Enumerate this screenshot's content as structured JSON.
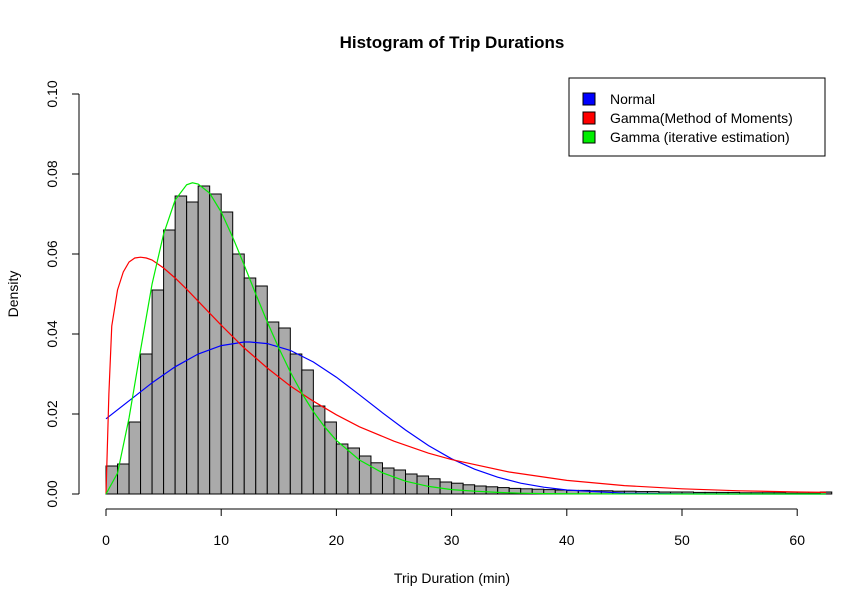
{
  "chart_data": {
    "type": "bar",
    "title": "Histogram of Trip Durations",
    "xlabel": "Trip Duration (min)",
    "ylabel": "Density",
    "xlim": [
      0,
      62.5
    ],
    "ylim": [
      0,
      0.1
    ],
    "x_ticks": [
      "0",
      "10",
      "20",
      "30",
      "40",
      "50",
      "60"
    ],
    "y_ticks": [
      "0.00",
      "0.02",
      "0.04",
      "0.06",
      "0.08",
      "0.10"
    ],
    "bin_width": 1,
    "bar_color": "#aaaaaa",
    "histogram_values": [
      0.007,
      0.0075,
      0.018,
      0.035,
      0.051,
      0.066,
      0.0745,
      0.073,
      0.077,
      0.075,
      0.0705,
      0.06,
      0.054,
      0.052,
      0.043,
      0.0415,
      0.035,
      0.031,
      0.022,
      0.018,
      0.0125,
      0.0115,
      0.0095,
      0.0078,
      0.0065,
      0.006,
      0.005,
      0.0045,
      0.0038,
      0.003,
      0.0027,
      0.0023,
      0.002,
      0.0018,
      0.0016,
      0.0014,
      0.0013,
      0.0012,
      0.0011,
      0.001,
      0.0009,
      0.0009,
      0.0008,
      0.0008,
      0.0007,
      0.0007,
      0.0006,
      0.0006,
      0.0005,
      0.0005,
      0.0005,
      0.0004,
      0.0004,
      0.0004,
      0.0004,
      0.0003,
      0.0003,
      0.0003,
      0.0003,
      0.0002,
      0.0002,
      0.0002,
      0.0005
    ],
    "series": [
      {
        "name": "Normal",
        "color": "#0000ff",
        "x": [
          0,
          2,
          4,
          6,
          8,
          10,
          12,
          12.5,
          14,
          16,
          18,
          20,
          22,
          24,
          26,
          28,
          30,
          32,
          34,
          36,
          38,
          40,
          45,
          50,
          55,
          60,
          62.5
        ],
        "y": [
          0.0188,
          0.0233,
          0.0278,
          0.0318,
          0.035,
          0.0371,
          0.038,
          0.038,
          0.0376,
          0.0359,
          0.033,
          0.0292,
          0.0248,
          0.0203,
          0.016,
          0.0121,
          0.0088,
          0.0062,
          0.0042,
          0.0027,
          0.0017,
          0.001,
          0.0002,
          3e-05,
          0.0,
          0.0,
          0.0
        ]
      },
      {
        "name": "Gamma(Method of Moments)",
        "color": "#ff0000",
        "x": [
          0,
          0.25,
          0.5,
          1,
          1.5,
          2,
          2.5,
          3,
          3.5,
          4,
          5,
          6,
          7,
          8,
          9,
          10,
          12,
          14,
          16,
          18,
          20,
          22,
          25,
          28,
          30,
          35,
          40,
          45,
          50,
          55,
          60,
          62.5
        ],
        "y": [
          0.0,
          0.025,
          0.042,
          0.051,
          0.0555,
          0.058,
          0.059,
          0.0592,
          0.059,
          0.0585,
          0.0565,
          0.054,
          0.0512,
          0.0482,
          0.0452,
          0.0422,
          0.0365,
          0.0315,
          0.027,
          0.0232,
          0.0198,
          0.0168,
          0.0132,
          0.0102,
          0.0086,
          0.0055,
          0.0034,
          0.0021,
          0.0013,
          0.0008,
          0.0005,
          0.0004
        ]
      },
      {
        "name": "Gamma (iterative estimation)",
        "color": "#00ee00",
        "x": [
          0,
          1,
          2,
          3,
          4,
          5,
          6,
          7,
          7.5,
          8,
          9,
          10,
          11,
          12,
          13,
          14,
          15,
          16,
          17,
          18,
          19,
          20,
          22,
          24,
          26,
          28,
          30,
          32,
          34,
          36,
          38,
          40,
          45,
          50,
          55,
          60,
          62.5
        ],
        "y": [
          0.0,
          0.0052,
          0.019,
          0.036,
          0.0525,
          0.065,
          0.0735,
          0.0773,
          0.0778,
          0.0775,
          0.0752,
          0.0705,
          0.0642,
          0.0572,
          0.05,
          0.043,
          0.0365,
          0.0305,
          0.0252,
          0.0206,
          0.0167,
          0.0134,
          0.0085,
          0.0053,
          0.0032,
          0.0019,
          0.0011,
          0.0007,
          0.0004,
          0.0002,
          0.0001,
          7e-05,
          2e-05,
          0.0,
          0.0,
          0.0,
          0.0
        ]
      }
    ],
    "legend_position": "top-right",
    "grid": false
  }
}
